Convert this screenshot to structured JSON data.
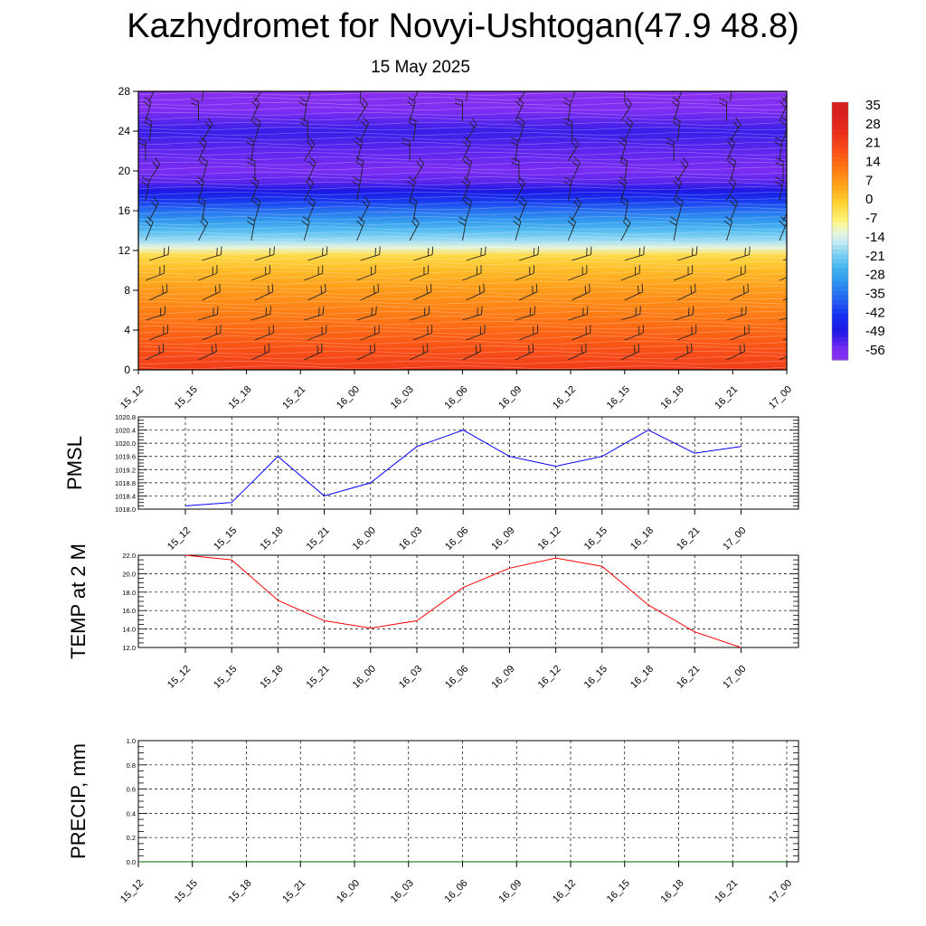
{
  "header": {
    "title": "Kazhydromet for Novyi-Ushtogan(47.9 48.8)",
    "subtitle": "15 May 2025"
  },
  "time_labels": [
    "15_12",
    "15_15",
    "15_18",
    "15_21",
    "16_00",
    "16_03",
    "16_06",
    "16_09",
    "16_12",
    "16_15",
    "16_18",
    "16_21",
    "17_00"
  ],
  "chart_data": [
    {
      "type": "heatmap",
      "title": "",
      "xlabel": "",
      "ylabel": "",
      "x": [
        "15_12",
        "15_15",
        "15_18",
        "15_21",
        "16_00",
        "16_03",
        "16_06",
        "16_09",
        "16_12",
        "16_15",
        "16_18",
        "16_21",
        "17_00"
      ],
      "ylim": [
        0,
        28
      ],
      "yticks": [
        0,
        4,
        8,
        12,
        16,
        20,
        24,
        28
      ],
      "colorbar": {
        "labels": [
          "35",
          "28",
          "21",
          "14",
          "7",
          "0",
          "-7",
          "-14",
          "-21",
          "-28",
          "-35",
          "-42",
          "-49",
          "-56"
        ],
        "values": [
          35,
          28,
          21,
          14,
          7,
          0,
          -7,
          -14,
          -21,
          -28,
          -35,
          -42,
          -49,
          -56
        ],
        "colors": [
          "#f4b9b9",
          "#e8271f",
          "#f23a1c",
          "#fa6a12",
          "#ff9c14",
          "#ffd22a",
          "#fff37a",
          "#d4eef5",
          "#53c1f0",
          "#2ba2ec",
          "#2a63ee",
          "#1818e6",
          "#1a1ae9",
          "#7c2ff1"
        ]
      },
      "temperature_profile": [
        {
          "y": 0,
          "t": 24
        },
        {
          "y": 2,
          "t": 20
        },
        {
          "y": 4,
          "t": 16
        },
        {
          "y": 6,
          "t": 12
        },
        {
          "y": 8,
          "t": 8
        },
        {
          "y": 10,
          "t": 3
        },
        {
          "y": 11.5,
          "t": -2
        },
        {
          "y": 12.3,
          "t": -12
        },
        {
          "y": 13,
          "t": -18
        },
        {
          "y": 14,
          "t": -24
        },
        {
          "y": 15,
          "t": -30
        },
        {
          "y": 16,
          "t": -36
        },
        {
          "y": 17,
          "t": -43
        },
        {
          "y": 18,
          "t": -50
        },
        {
          "y": 19,
          "t": -55
        },
        {
          "y": 20,
          "t": -57
        },
        {
          "y": 22,
          "t": -55
        },
        {
          "y": 24,
          "t": -52
        },
        {
          "y": 26,
          "t": -58
        },
        {
          "y": 28,
          "t": -62
        }
      ],
      "wind_barb_rows": [
        1,
        3,
        5,
        7,
        9,
        11,
        13,
        15,
        17,
        19,
        21,
        23,
        25,
        27
      ]
    },
    {
      "type": "line",
      "title": "",
      "xlabel": "",
      "ylabel": "PMSL",
      "x": [
        "15_12",
        "15_15",
        "15_18",
        "15_21",
        "16_00",
        "16_03",
        "16_06",
        "16_09",
        "16_12",
        "16_15",
        "16_18",
        "16_21",
        "17_00"
      ],
      "series": [
        {
          "values": [
            1018.1,
            1018.2,
            1019.6,
            1018.4,
            1018.8,
            1019.9,
            1020.4,
            1019.6,
            1019.3,
            1019.6,
            1020.4,
            1019.7,
            1019.9
          ],
          "color": "#0000ff"
        }
      ],
      "ylim": [
        1018.0,
        1020.8
      ],
      "yticks": [
        "1018.0",
        "1018.4",
        "1018.8",
        "1019.2",
        "1019.6",
        "1020.0",
        "1020.4",
        "1020.8"
      ]
    },
    {
      "type": "line",
      "title": "",
      "xlabel": "",
      "ylabel": "TEMP at 2 M",
      "x": [
        "15_12",
        "15_15",
        "15_18",
        "15_21",
        "16_00",
        "16_03",
        "16_06",
        "16_09",
        "16_12",
        "16_15",
        "16_18",
        "16_21",
        "17_00"
      ],
      "series": [
        {
          "values": [
            22.0,
            21.5,
            17.1,
            14.9,
            14.1,
            14.9,
            18.5,
            20.6,
            21.7,
            20.8,
            16.6,
            13.7,
            12.0
          ],
          "color": "#ff0000"
        }
      ],
      "ylim": [
        12.0,
        22.0
      ],
      "yticks": [
        "12.0",
        "14.0",
        "16.0",
        "18.0",
        "20.0",
        "22.0"
      ]
    },
    {
      "type": "line",
      "title": "",
      "xlabel": "",
      "ylabel": "PRECIP, mm",
      "x": [
        "15_12",
        "15_15",
        "15_18",
        "15_21",
        "16_00",
        "16_03",
        "16_06",
        "16_09",
        "16_12",
        "16_15",
        "16_18",
        "16_21",
        "17_00"
      ],
      "series": [
        {
          "values": [
            0,
            0,
            0,
            0,
            0,
            0,
            0,
            0,
            0,
            0,
            0,
            0,
            0
          ],
          "color": "#006400"
        }
      ],
      "ylim": [
        0.0,
        1.0
      ],
      "yticks": [
        "0.0",
        "0.2",
        "0.4",
        "0.6",
        "0.8",
        "1.0"
      ]
    }
  ]
}
